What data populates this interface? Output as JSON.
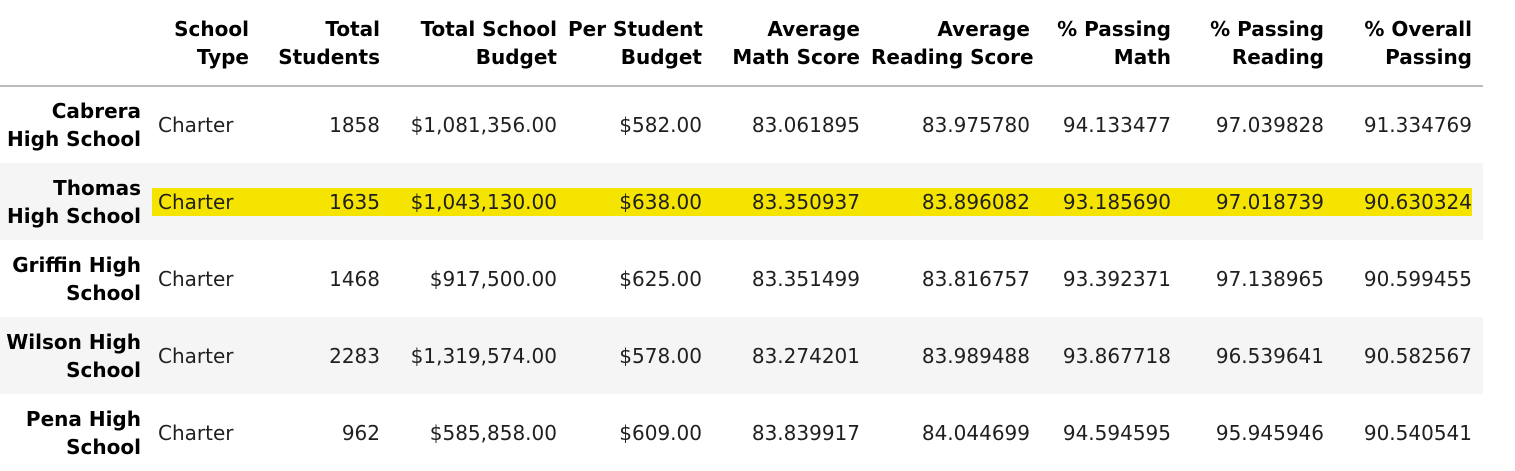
{
  "colors": {
    "highlight": "#f5e400",
    "row_alt": "#f5f5f5",
    "header_rule": "#bdbdbd"
  },
  "headers": [
    {
      "l1": "",
      "l2": ""
    },
    {
      "l1": "School",
      "l2": "Type"
    },
    {
      "l1": "Total",
      "l2": "Students"
    },
    {
      "l1": "Total School",
      "l2": "Budget"
    },
    {
      "l1": "Per Student",
      "l2": "Budget"
    },
    {
      "l1": "Average",
      "l2": "Math Score"
    },
    {
      "l1": "Average",
      "l2": "Reading Score"
    },
    {
      "l1": "% Passing",
      "l2": "Math"
    },
    {
      "l1": "% Passing",
      "l2": "Reading"
    },
    {
      "l1": "% Overall",
      "l2": "Passing"
    }
  ],
  "rows": [
    {
      "name_l1": "Cabrera",
      "name_l2": "High School",
      "highlighted": false,
      "cells": [
        "Charter",
        "1858",
        "$1,081,356.00",
        "$582.00",
        "83.061895",
        "83.975780",
        "94.133477",
        "97.039828",
        "91.334769"
      ]
    },
    {
      "name_l1": "Thomas",
      "name_l2": "High School",
      "highlighted": true,
      "cells": [
        "Charter",
        "1635",
        "$1,043,130.00",
        "$638.00",
        "83.350937",
        "83.896082",
        "93.185690",
        "97.018739",
        "90.630324"
      ]
    },
    {
      "name_l1": "Griffin High",
      "name_l2": "School",
      "highlighted": false,
      "cells": [
        "Charter",
        "1468",
        "$917,500.00",
        "$625.00",
        "83.351499",
        "83.816757",
        "93.392371",
        "97.138965",
        "90.599455"
      ]
    },
    {
      "name_l1": "Wilson High",
      "name_l2": "School",
      "highlighted": false,
      "cells": [
        "Charter",
        "2283",
        "$1,319,574.00",
        "$578.00",
        "83.274201",
        "83.989488",
        "93.867718",
        "96.539641",
        "90.582567"
      ]
    },
    {
      "name_l1": "Pena High",
      "name_l2": "School",
      "highlighted": false,
      "cells": [
        "Charter",
        "962",
        "$585,858.00",
        "$609.00",
        "83.839917",
        "84.044699",
        "94.594595",
        "95.945946",
        "90.540541"
      ]
    }
  ]
}
